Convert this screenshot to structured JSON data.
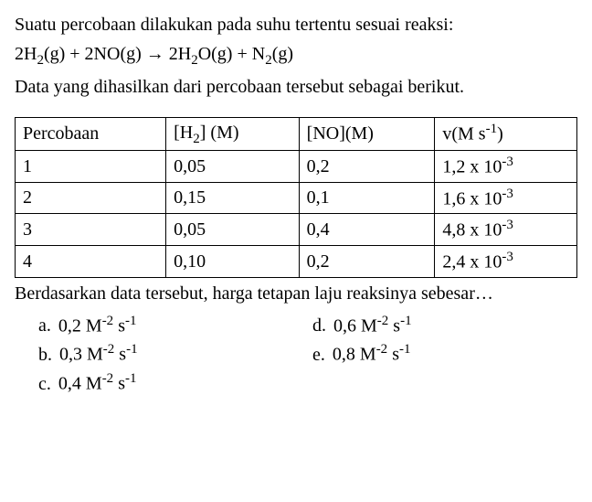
{
  "problem": {
    "line1": "Suatu percobaan dilakukan pada suhu tertentu sesuai reaksi:",
    "equation_parts": {
      "p1": "2H",
      "p2": "2",
      "p3": "(g) + 2NO(g) → 2H",
      "p4": "2",
      "p5": "O(g) + N",
      "p6": "2",
      "p7": "(g)"
    },
    "line2": "Data yang dihasilkan dari percobaan tersebut sebagai berikut."
  },
  "table": {
    "headers": {
      "c1": "Percobaan",
      "c2_p1": "[H",
      "c2_p2": "2",
      "c2_p3": "] (M)",
      "c3": "[NO](M)",
      "c4_p1": "v(M s",
      "c4_p2": "-1",
      "c4_p3": ")"
    },
    "rows": [
      {
        "c1": "1",
        "c2": "0,05",
        "c3": "0,2",
        "c4_p1": "1,2 x 10",
        "c4_p2": "-3"
      },
      {
        "c1": "2",
        "c2": "0,15",
        "c3": "0,1",
        "c4_p1": "1,6 x 10",
        "c4_p2": "-3"
      },
      {
        "c1": "3",
        "c2": "0,05",
        "c3": "0,4",
        "c4_p1": "4,8 x 10",
        "c4_p2": "-3"
      },
      {
        "c1": "4",
        "c2": "0,10",
        "c3": "0,2",
        "c4_p1": "2,4 x 10",
        "c4_p2": "-3"
      }
    ]
  },
  "followup": "Berdasarkan data tersebut, harga tetapan laju reaksinya sebesar…",
  "options": {
    "a": {
      "letter": "a.",
      "v1": "0,2 M",
      "v2": "-2",
      "v3": " s",
      "v4": "-1"
    },
    "b": {
      "letter": "b.",
      "v1": "0,3 M",
      "v2": "-2",
      "v3": " s",
      "v4": "-1"
    },
    "c": {
      "letter": "c.",
      "v1": "0,4 M",
      "v2": "-2",
      "v3": " s",
      "v4": "-1"
    },
    "d": {
      "letter": "d.",
      "v1": "0,6 M",
      "v2": "-2",
      "v3": " s",
      "v4": "-1"
    },
    "e": {
      "letter": "e.",
      "v1": "0,8 M",
      "v2": "-2",
      "v3": " s",
      "v4": "-1"
    }
  },
  "styles": {
    "font_family": "Times New Roman",
    "font_size_pt": 15,
    "text_color": "#000000",
    "bg_color": "#ffffff",
    "border_color": "#000000"
  }
}
